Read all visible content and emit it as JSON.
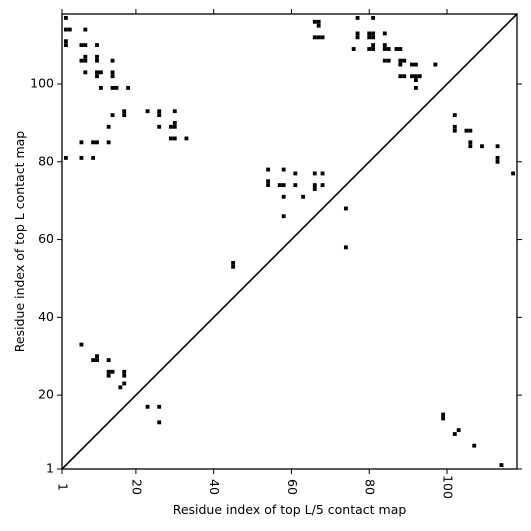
{
  "chart_data": {
    "type": "heatmap",
    "title": "",
    "xlabel": "Residue index of top L/5 contact map",
    "ylabel": "Residue index of top L contact map",
    "xlim": [
      1,
      118
    ],
    "ylim": [
      1,
      118
    ],
    "x_ticks": [
      {
        "value": 1,
        "label": "1"
      },
      {
        "value": 20,
        "label": "20"
      },
      {
        "value": 40,
        "label": "40"
      },
      {
        "value": 60,
        "label": "60"
      },
      {
        "value": 80,
        "label": "80"
      },
      {
        "value": 100,
        "label": "100"
      }
    ],
    "y_ticks": [
      {
        "value": 1,
        "label": "1"
      },
      {
        "value": 20,
        "label": "20"
      },
      {
        "value": 40,
        "label": "40"
      },
      {
        "value": 60,
        "label": "60"
      },
      {
        "value": 80,
        "label": "80"
      },
      {
        "value": 100,
        "label": "100"
      }
    ],
    "diagonal": true,
    "lower_contacts": [
      [
        6,
        33
      ],
      [
        9,
        29
      ],
      [
        10,
        29
      ],
      [
        10,
        30
      ],
      [
        13,
        29
      ],
      [
        13,
        25
      ],
      [
        13,
        26
      ],
      [
        14,
        26
      ],
      [
        17,
        25
      ],
      [
        17,
        26
      ],
      [
        16,
        22
      ],
      [
        17,
        23
      ],
      [
        23,
        17
      ],
      [
        26,
        17
      ],
      [
        26,
        13
      ],
      [
        45,
        53
      ],
      [
        45,
        54
      ],
      [
        74,
        58
      ],
      [
        99,
        14
      ],
      [
        99,
        15
      ],
      [
        102,
        10
      ],
      [
        103,
        11
      ],
      [
        107,
        7
      ],
      [
        114,
        2
      ]
    ],
    "upper_contacts": [
      [
        2,
        117
      ],
      [
        2,
        114
      ],
      [
        3,
        114
      ],
      [
        2,
        111
      ],
      [
        2,
        110
      ],
      [
        6,
        110
      ],
      [
        7,
        110
      ],
      [
        7,
        114
      ],
      [
        10,
        110
      ],
      [
        6,
        106
      ],
      [
        7,
        106
      ],
      [
        7,
        107
      ],
      [
        10,
        106
      ],
      [
        10,
        107
      ],
      [
        14,
        106
      ],
      [
        7,
        103
      ],
      [
        10,
        103
      ],
      [
        10,
        102
      ],
      [
        11,
        103
      ],
      [
        14,
        102
      ],
      [
        14,
        103
      ],
      [
        11,
        99
      ],
      [
        14,
        99
      ],
      [
        15,
        99
      ],
      [
        18,
        99
      ],
      [
        14,
        92
      ],
      [
        17,
        92
      ],
      [
        17,
        93
      ],
      [
        13,
        89
      ],
      [
        23,
        93
      ],
      [
        26,
        92
      ],
      [
        26,
        93
      ],
      [
        26,
        89
      ],
      [
        29,
        89
      ],
      [
        30,
        89
      ],
      [
        30,
        90
      ],
      [
        30,
        93
      ],
      [
        29,
        86
      ],
      [
        30,
        86
      ],
      [
        33,
        86
      ],
      [
        2,
        81
      ],
      [
        6,
        81
      ],
      [
        9,
        81
      ],
      [
        6,
        85
      ],
      [
        9,
        85
      ],
      [
        10,
        85
      ],
      [
        13,
        85
      ],
      [
        54,
        78
      ],
      [
        58,
        78
      ],
      [
        54,
        75
      ],
      [
        54,
        74
      ],
      [
        57,
        74
      ],
      [
        58,
        74
      ],
      [
        61,
        77
      ],
      [
        61,
        74
      ],
      [
        66,
        77
      ],
      [
        68,
        77
      ],
      [
        66,
        74
      ],
      [
        66,
        73
      ],
      [
        68,
        74
      ],
      [
        58,
        71
      ],
      [
        63,
        71
      ],
      [
        58,
        66
      ],
      [
        74,
        68
      ],
      [
        66,
        116
      ],
      [
        67,
        116
      ],
      [
        67,
        115
      ],
      [
        66,
        112
      ],
      [
        67,
        112
      ],
      [
        68,
        112
      ],
      [
        77,
        117
      ],
      [
        81,
        117
      ],
      [
        77,
        113
      ],
      [
        77,
        112
      ],
      [
        80,
        113
      ],
      [
        81,
        113
      ],
      [
        80,
        112
      ],
      [
        81,
        112
      ],
      [
        84,
        113
      ],
      [
        76,
        109
      ],
      [
        80,
        109
      ],
      [
        81,
        109
      ],
      [
        81,
        110
      ],
      [
        84,
        110
      ],
      [
        84,
        109
      ],
      [
        85,
        109
      ],
      [
        87,
        109
      ],
      [
        88,
        109
      ],
      [
        84,
        106
      ],
      [
        85,
        106
      ],
      [
        88,
        106
      ],
      [
        89,
        106
      ],
      [
        88,
        105
      ],
      [
        91,
        105
      ],
      [
        92,
        105
      ],
      [
        97,
        105
      ],
      [
        88,
        102
      ],
      [
        89,
        102
      ],
      [
        91,
        102
      ],
      [
        92,
        102
      ],
      [
        93,
        102
      ],
      [
        92,
        101
      ],
      [
        92,
        99
      ],
      [
        102,
        92
      ],
      [
        102,
        89
      ],
      [
        102,
        88
      ],
      [
        105,
        88
      ],
      [
        106,
        88
      ],
      [
        106,
        85
      ],
      [
        106,
        84
      ],
      [
        109,
        84
      ],
      [
        113,
        84
      ],
      [
        113,
        81
      ],
      [
        113,
        80
      ],
      [
        117,
        77
      ]
    ]
  }
}
